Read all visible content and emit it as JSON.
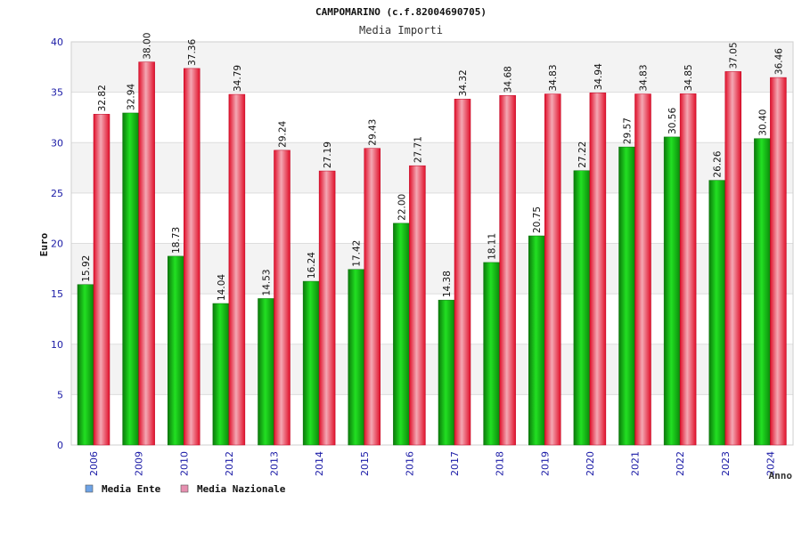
{
  "chart_data": {
    "type": "bar",
    "title": "CAMPOMARINO (c.f.82004690705)",
    "subtitle": "Media Importi",
    "xlabel": "Anno",
    "ylabel": "Euro",
    "ylim": [
      0,
      40
    ],
    "yticks": [
      0,
      5,
      10,
      15,
      20,
      25,
      30,
      35,
      40
    ],
    "grid": true,
    "legend_position": "bottom-left",
    "categories": [
      "2006",
      "2009",
      "2010",
      "2012",
      "2013",
      "2014",
      "2015",
      "2016",
      "2017",
      "2018",
      "2019",
      "2020",
      "2021",
      "2022",
      "2023",
      "2024"
    ],
    "series": [
      {
        "name": "Media Ente",
        "legend_color": "#6ea3e6",
        "bar_color": "#18b818",
        "values": [
          15.92,
          32.94,
          18.73,
          14.04,
          14.53,
          16.24,
          17.42,
          22.0,
          14.38,
          18.11,
          20.75,
          27.22,
          29.57,
          30.56,
          26.26,
          30.4
        ],
        "labels": [
          "15.92",
          "32.94",
          "18.73",
          "14.04",
          "14.53",
          "16.24",
          "17.42",
          "22.00",
          "14.38",
          "18.11",
          "20.75",
          "27.22",
          "29.57",
          "30.56",
          "26.26",
          "30.40"
        ]
      },
      {
        "name": "Media Nazionale",
        "legend_color": "#e68fb0",
        "bar_color": "#e0223a",
        "values": [
          32.82,
          38.0,
          37.36,
          34.79,
          29.24,
          27.19,
          29.43,
          27.71,
          34.32,
          34.68,
          34.83,
          34.94,
          34.83,
          34.85,
          37.05,
          36.46
        ],
        "labels": [
          "32.82",
          "38.00",
          "37.36",
          "34.79",
          "29.24",
          "27.19",
          "29.43",
          "27.71",
          "34.32",
          "34.68",
          "34.83",
          "34.94",
          "34.83",
          "34.85",
          "37.05",
          "36.46"
        ]
      }
    ]
  }
}
